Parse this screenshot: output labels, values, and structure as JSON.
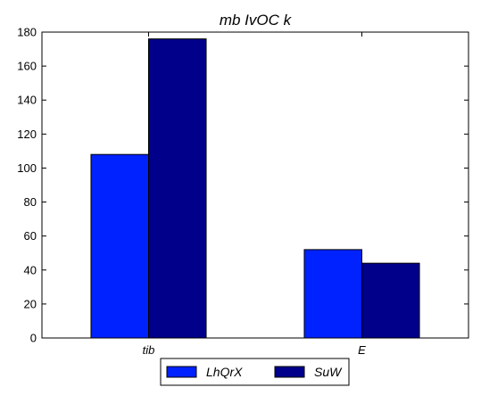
{
  "chart_data": {
    "type": "bar",
    "title": "mb IvOC k",
    "xlabel": "",
    "ylabel": "",
    "categories": [
      "tib",
      "E"
    ],
    "series": [
      {
        "name": "LhQrX",
        "values": [
          108,
          52
        ],
        "color": "#0022ff"
      },
      {
        "name": "SuW",
        "values": [
          176,
          44
        ],
        "color": "#00008b"
      }
    ],
    "ylim": [
      0,
      180
    ],
    "yticks": [
      0,
      20,
      40,
      60,
      80,
      100,
      120,
      140,
      160,
      180
    ],
    "grid": false,
    "legend_position": "bottom-center"
  }
}
